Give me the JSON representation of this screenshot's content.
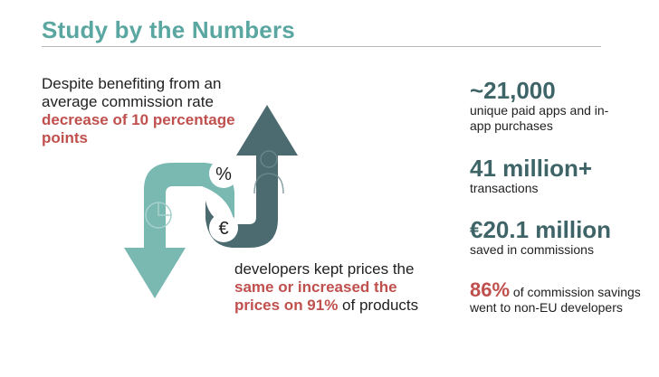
{
  "title": "Study by the Numbers",
  "intro": {
    "text_before": "Despite benefiting from an average commission rate ",
    "highlight": "decrease of 10 percentage points"
  },
  "outro": {
    "text_before": "developers kept prices the ",
    "highlight": "same or increased the prices on 91%",
    "text_after": " of products"
  },
  "icons": {
    "percent": "%",
    "euro": "€"
  },
  "stats": [
    {
      "value": "~21,000",
      "label": "unique paid apps and in-app purchases"
    },
    {
      "value": "41 million+",
      "label": "transactions"
    },
    {
      "value": "€20.1 million",
      "label": "saved in commissions"
    }
  ],
  "stat_highlight": {
    "value": "86%",
    "label": " of commission savings went to non-EU developers"
  },
  "colors": {
    "title": "#5aa6a0",
    "teal_arrow": "#7ab8b2",
    "dark_arrow": "#4b6b70",
    "highlight": "#c0504d",
    "stat_number": "#3f6468"
  }
}
